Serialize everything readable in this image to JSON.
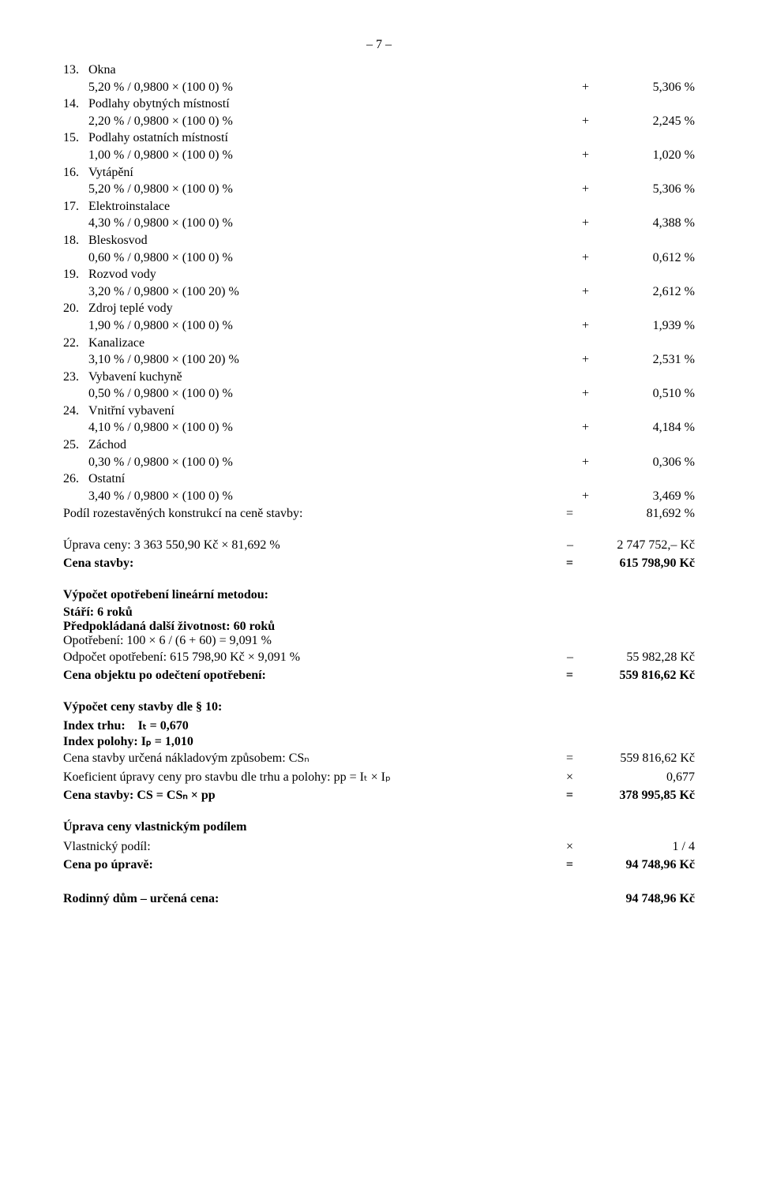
{
  "page_number": "– 7 –",
  "items": [
    {
      "n": "13.",
      "label": "Okna",
      "expr": "5,20 % / 0,9800 × (100 0) %",
      "op": "+",
      "val": "5,306 %"
    },
    {
      "n": "14.",
      "label": "Podlahy obytných místností",
      "expr": "2,20 % / 0,9800 × (100 0) %",
      "op": "+",
      "val": "2,245 %"
    },
    {
      "n": "15.",
      "label": "Podlahy ostatních místností",
      "expr": "1,00 % / 0,9800 × (100 0) %",
      "op": "+",
      "val": "1,020 %"
    },
    {
      "n": "16.",
      "label": "Vytápění",
      "expr": "5,20 % / 0,9800 × (100 0) %",
      "op": "+",
      "val": "5,306 %"
    },
    {
      "n": "17.",
      "label": "Elektroinstalace",
      "expr": "4,30 % / 0,9800 × (100 0) %",
      "op": "+",
      "val": "4,388 %"
    },
    {
      "n": "18.",
      "label": "Bleskosvod",
      "expr": "0,60 % / 0,9800 × (100 0) %",
      "op": "+",
      "val": "0,612 %"
    },
    {
      "n": "19.",
      "label": "Rozvod vody",
      "expr": "3,20 % / 0,9800 × (100 20) %",
      "op": "+",
      "val": "2,612 %"
    },
    {
      "n": "20.",
      "label": "Zdroj teplé vody",
      "expr": "1,90 % / 0,9800 × (100 0) %",
      "op": "+",
      "val": "1,939 %"
    },
    {
      "n": "22.",
      "label": "Kanalizace",
      "expr": "3,10 % / 0,9800 × (100 20) %",
      "op": "+",
      "val": "2,531 %"
    },
    {
      "n": "23.",
      "label": "Vybavení kuchyně",
      "expr": "0,50 % / 0,9800 × (100 0) %",
      "op": "+",
      "val": "0,510 %"
    },
    {
      "n": "24.",
      "label": "Vnitřní vybavení",
      "expr": "4,10 % / 0,9800 × (100 0) %",
      "op": "+",
      "val": "4,184 %"
    },
    {
      "n": "25.",
      "label": "Záchod",
      "expr": "0,30 % / 0,9800 × (100 0) %",
      "op": "+",
      "val": "0,306 %"
    },
    {
      "n": "26.",
      "label": "Ostatní",
      "expr": "3,40 % / 0,9800 × (100 0) %",
      "op": "+",
      "val": "3,469 %"
    }
  ],
  "podil": {
    "label": "Podíl rozestavěných konstrukcí na ceně stavby:",
    "op": "=",
    "val": "81,692 %"
  },
  "uprava_ceny": {
    "label": "Úprava ceny: 3 363 550,90 Kč × 81,692 %",
    "op": "–",
    "val": "2 747 752,– Kč"
  },
  "cena_stavby": {
    "label": "Cena stavby:",
    "op": "=",
    "val": "615 798,90 Kč"
  },
  "opotrebeni": {
    "heading": "Výpočet opotřebení lineární metodou:",
    "stari": "Stáří: 6 roků",
    "zivotnost": "Předpokládaná další životnost: 60 roků",
    "opot": "Opotřebení: 100 × 6 / (6 + 60) = 9,091 %",
    "odpocet": {
      "label": "Odpočet opotřebení: 615 798,90 Kč × 9,091 %",
      "op": "–",
      "val": "55 982,28 Kč"
    },
    "cena_obj": {
      "label": "Cena objektu po odečtení opotřebení:",
      "op": "=",
      "val": "559 816,62 Kč"
    }
  },
  "vypocet10": {
    "heading": "Výpočet ceny stavby dle § 10:",
    "index_trhu": "Index trhu:    Iₜ = 0,670",
    "index_polohy": "Index polohy: Iₚ = 1,010",
    "csn": {
      "label": "Cena stavby určená nákladovým způsobem: CSₙ",
      "op": "=",
      "val": "559 816,62 Kč"
    },
    "koef": {
      "label": "Koeficient úpravy ceny pro stavbu dle trhu a polohy: pp = Iₜ × Iₚ",
      "op": "×",
      "val": "0,677"
    },
    "cs": {
      "label": "Cena stavby: CS = CSₙ × pp",
      "op": "=",
      "val": "378 995,85 Kč"
    }
  },
  "vlastnik": {
    "heading": "Úprava ceny vlastnickým podílem",
    "podil": {
      "label": "Vlastnický podíl:",
      "op": "×",
      "val": "1 / 4"
    },
    "cena": {
      "label": "Cena po úpravě:",
      "op": "=",
      "val": "94 748,96 Kč"
    }
  },
  "final": {
    "label": "Rodinný dům – určená cena:",
    "val": "94 748,96 Kč"
  }
}
